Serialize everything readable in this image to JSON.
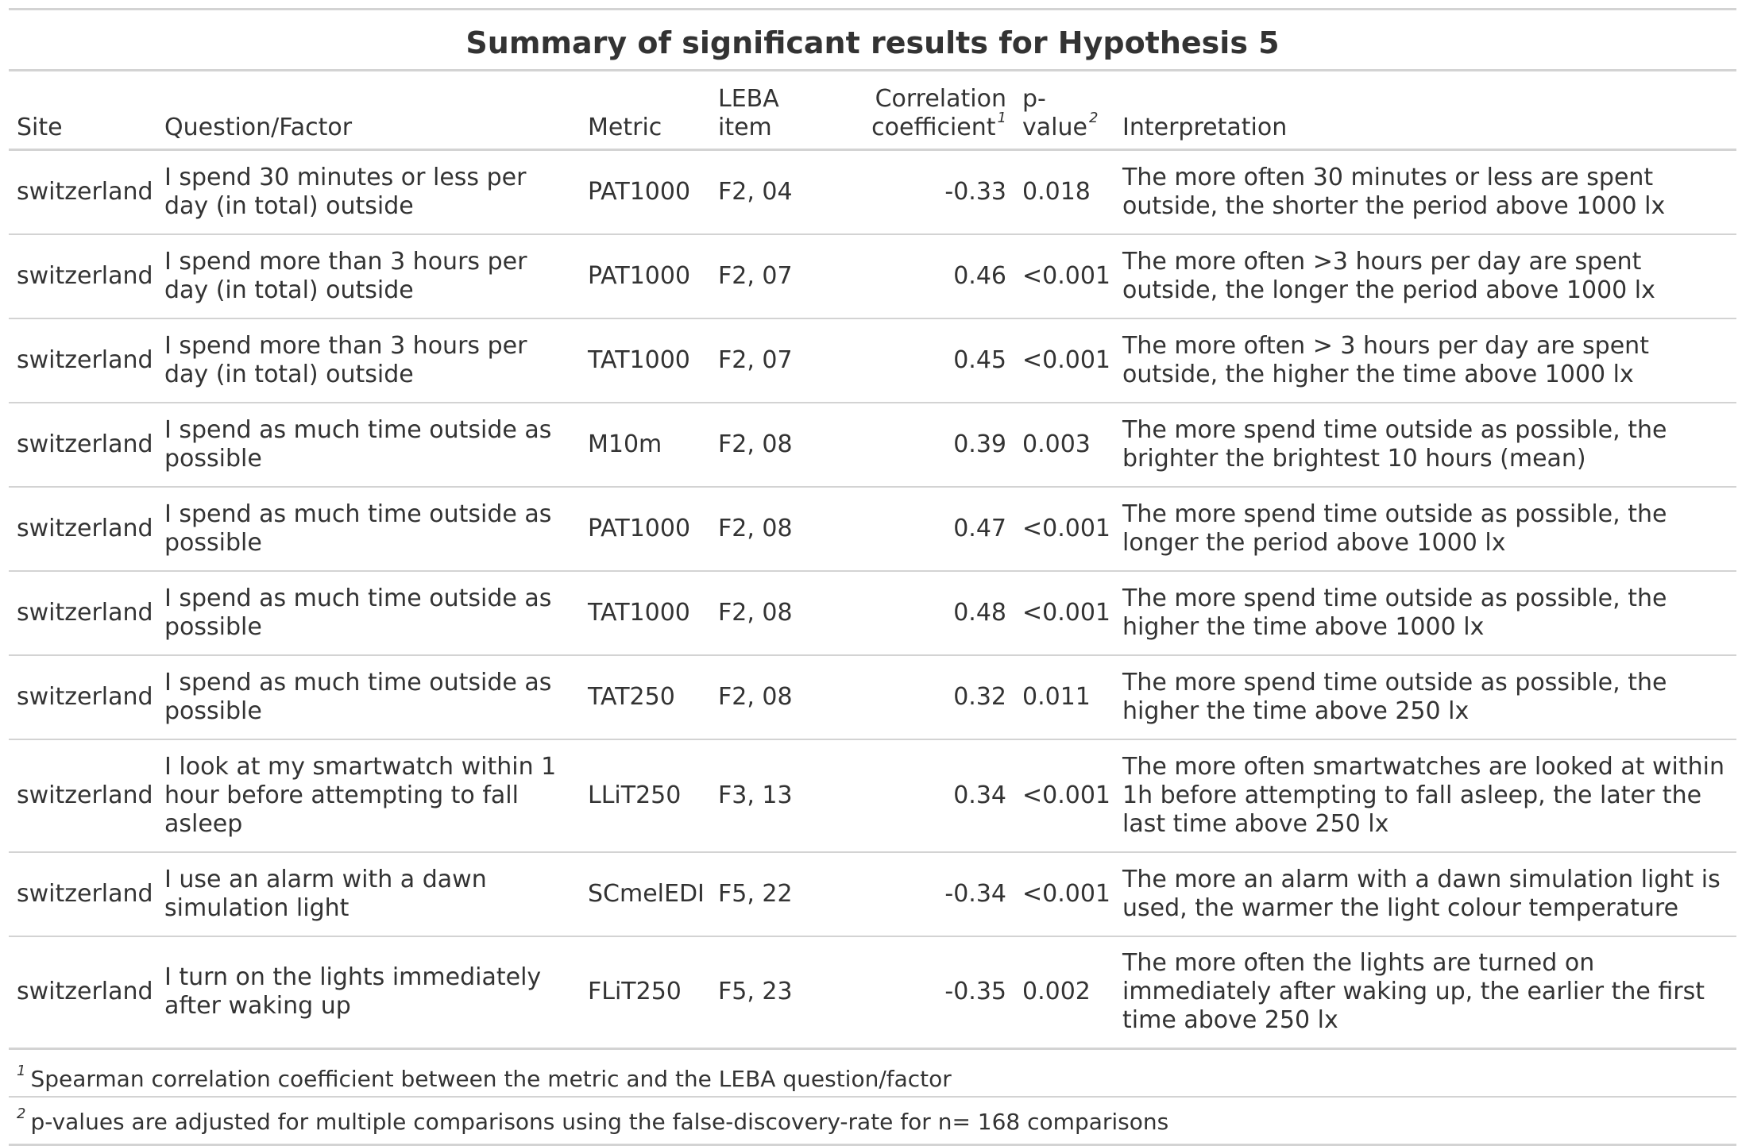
{
  "table": {
    "title": "Summary of significant results for Hypothesis 5",
    "columns": [
      {
        "label": "Site",
        "footnote": ""
      },
      {
        "label": "Question/Factor",
        "footnote": ""
      },
      {
        "label": "Metric",
        "footnote": ""
      },
      {
        "label": "LEBA item",
        "footnote": ""
      },
      {
        "label": "Correlation coefficient",
        "footnote": "1"
      },
      {
        "label": "p-value",
        "footnote": "2"
      },
      {
        "label": "Interpretation",
        "footnote": ""
      }
    ],
    "rows": [
      {
        "site": "switzerland",
        "question": "I spend 30 minutes or less per day (in total) outside",
        "metric": "PAT1000",
        "item": "F2, 04",
        "coef": "-0.33",
        "p": "0.018",
        "interpretation": "The more often 30 minutes or less are spent outside, the shorter the period above 1000 lx"
      },
      {
        "site": "switzerland",
        "question": "I spend more than 3 hours per day (in total) outside",
        "metric": "PAT1000",
        "item": "F2, 07",
        "coef": "0.46",
        "p": "<0.001",
        "interpretation": "The more often >3 hours per day are spent outside, the longer the period above 1000 lx"
      },
      {
        "site": "switzerland",
        "question": "I spend more than 3 hours per day (in total) outside",
        "metric": "TAT1000",
        "item": "F2, 07",
        "coef": "0.45",
        "p": "<0.001",
        "interpretation": "The more often > 3 hours per day are spent outside, the higher the time above 1000 lx"
      },
      {
        "site": "switzerland",
        "question": "I spend as much time outside as possible",
        "metric": "M10m",
        "item": "F2, 08",
        "coef": "0.39",
        "p": "0.003",
        "interpretation": "The more spend time outside as possible, the brighter the brightest 10 hours (mean)"
      },
      {
        "site": "switzerland",
        "question": "I spend as much time outside as possible",
        "metric": "PAT1000",
        "item": "F2, 08",
        "coef": "0.47",
        "p": "<0.001",
        "interpretation": "The more spend time outside as possible, the longer the period above 1000 lx"
      },
      {
        "site": "switzerland",
        "question": "I spend as much time outside as possible",
        "metric": "TAT1000",
        "item": "F2, 08",
        "coef": "0.48",
        "p": "<0.001",
        "interpretation": "The more spend time outside as possible, the higher the time above 1000 lx"
      },
      {
        "site": "switzerland",
        "question": "I spend as much time outside as possible",
        "metric": "TAT250",
        "item": "F2, 08",
        "coef": "0.32",
        "p": "0.011",
        "interpretation": "The more spend time outside as possible, the higher the time above 250 lx"
      },
      {
        "site": "switzerland",
        "question": "I look at my smartwatch within 1 hour before attempting to fall asleep",
        "metric": "LLiT250",
        "item": "F3, 13",
        "coef": "0.34",
        "p": "<0.001",
        "interpretation": "The more often smartwatches are looked at within 1h before attempting to fall asleep, the later the last time above 250 lx"
      },
      {
        "site": "switzerland",
        "question": "I use an alarm with a dawn simulation light",
        "metric": "SCmelEDI",
        "item": "F5, 22",
        "coef": "-0.34",
        "p": "<0.001",
        "interpretation": "The more an alarm with a dawn simulation light is used, the warmer the light colour temperature"
      },
      {
        "site": "switzerland",
        "question": "I turn on the lights immediately after waking up",
        "metric": "FLiT250",
        "item": "F5, 23",
        "coef": "-0.35",
        "p": "0.002",
        "interpretation": "The more often the lights are turned on immediately after waking up, the earlier the first time above 250 lx"
      }
    ],
    "footnotes": [
      {
        "mark": "1",
        "text": "Spearman correlation coefficient between the metric and the LEBA question/factor"
      },
      {
        "mark": "2",
        "text": "p-values are adjusted for multiple comparisons using the false-discovery-rate for n= 168 comparisons"
      }
    ]
  }
}
